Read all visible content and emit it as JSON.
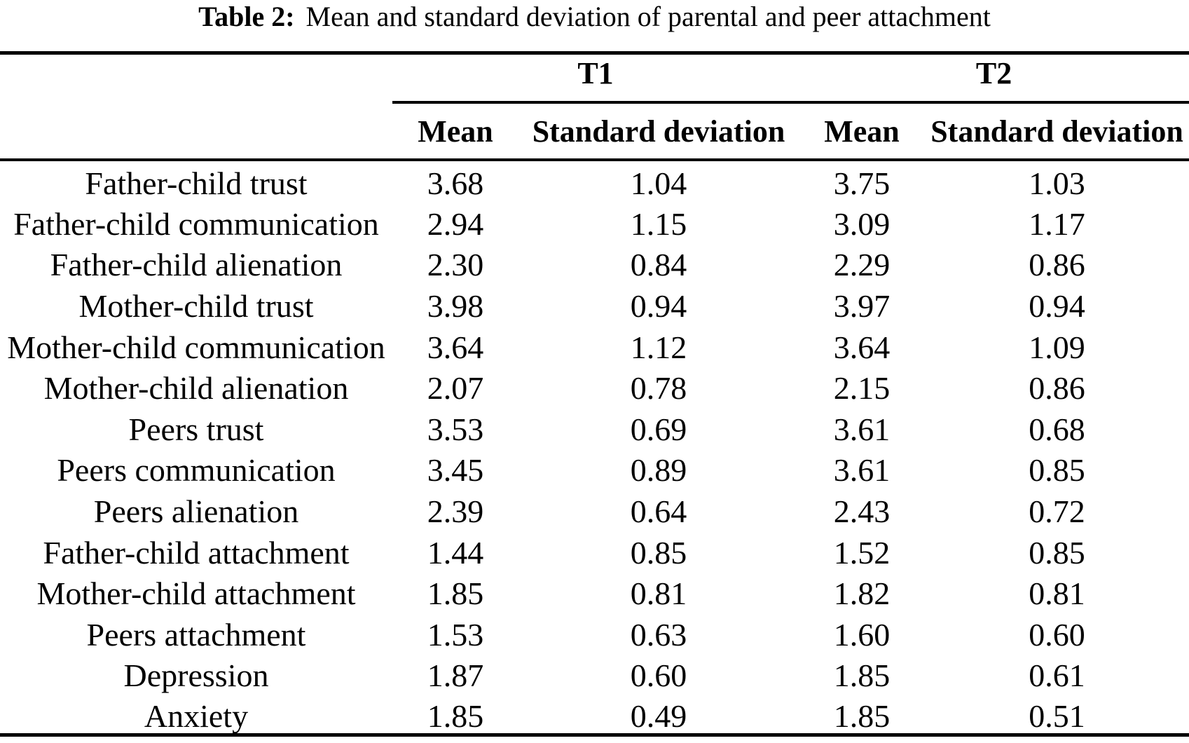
{
  "caption": {
    "label": "Table 2:",
    "text": "Mean and standard deviation of parental and peer attachment"
  },
  "groups": [
    {
      "label": "T1"
    },
    {
      "label": "T2"
    }
  ],
  "column_headers": [
    "Mean",
    "Standard deviation",
    "Mean",
    "Standard deviation"
  ],
  "rows": [
    {
      "label": "Father-child trust",
      "t1_mean": "3.68",
      "t1_sd": "1.04",
      "t2_mean": "3.75",
      "t2_sd": "1.03"
    },
    {
      "label": "Father-child communication",
      "t1_mean": "2.94",
      "t1_sd": "1.15",
      "t2_mean": "3.09",
      "t2_sd": "1.17"
    },
    {
      "label": "Father-child alienation",
      "t1_mean": "2.30",
      "t1_sd": "0.84",
      "t2_mean": "2.29",
      "t2_sd": "0.86"
    },
    {
      "label": "Mother-child trust",
      "t1_mean": "3.98",
      "t1_sd": "0.94",
      "t2_mean": "3.97",
      "t2_sd": "0.94"
    },
    {
      "label": "Mother-child communication",
      "t1_mean": "3.64",
      "t1_sd": "1.12",
      "t2_mean": "3.64",
      "t2_sd": "1.09"
    },
    {
      "label": "Mother-child alienation",
      "t1_mean": "2.07",
      "t1_sd": "0.78",
      "t2_mean": "2.15",
      "t2_sd": "0.86"
    },
    {
      "label": "Peers trust",
      "t1_mean": "3.53",
      "t1_sd": "0.69",
      "t2_mean": "3.61",
      "t2_sd": "0.68"
    },
    {
      "label": "Peers communication",
      "t1_mean": "3.45",
      "t1_sd": "0.89",
      "t2_mean": "3.61",
      "t2_sd": "0.85"
    },
    {
      "label": "Peers alienation",
      "t1_mean": "2.39",
      "t1_sd": "0.64",
      "t2_mean": "2.43",
      "t2_sd": "0.72"
    },
    {
      "label": "Father-child attachment",
      "t1_mean": "1.44",
      "t1_sd": "0.85",
      "t2_mean": "1.52",
      "t2_sd": "0.85"
    },
    {
      "label": "Mother-child attachment",
      "t1_mean": "1.85",
      "t1_sd": "0.81",
      "t2_mean": "1.82",
      "t2_sd": "0.81"
    },
    {
      "label": "Peers attachment",
      "t1_mean": "1.53",
      "t1_sd": "0.63",
      "t2_mean": "1.60",
      "t2_sd": "0.60"
    },
    {
      "label": "Depression",
      "t1_mean": "1.87",
      "t1_sd": "0.60",
      "t2_mean": "1.85",
      "t2_sd": "0.61"
    },
    {
      "label": "Anxiety",
      "t1_mean": "1.85",
      "t1_sd": "0.49",
      "t2_mean": "1.85",
      "t2_sd": "0.51"
    }
  ]
}
